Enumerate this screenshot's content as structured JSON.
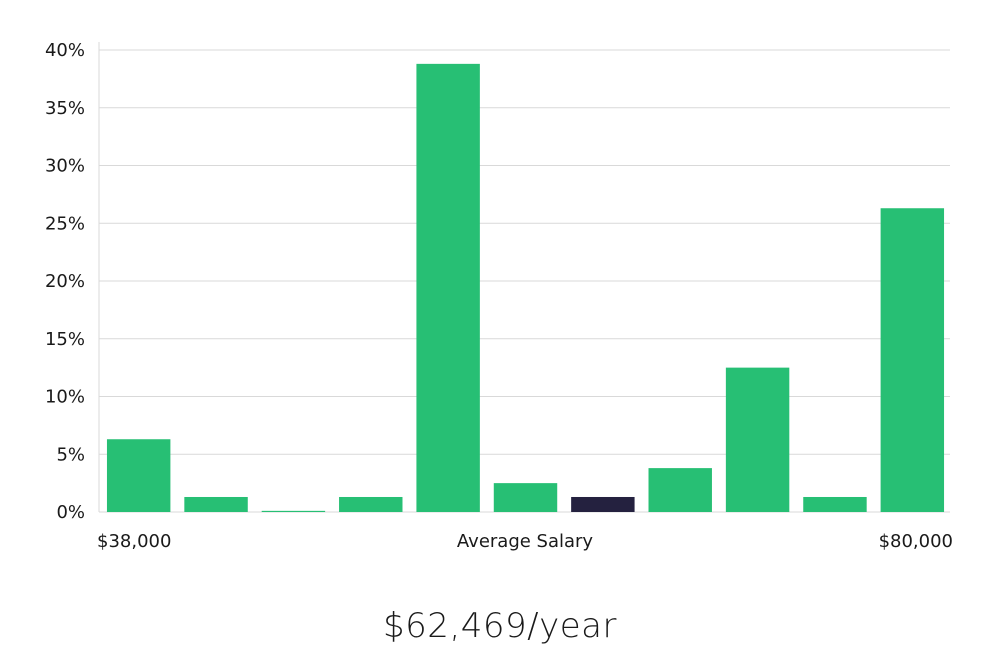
{
  "chart_data": {
    "type": "bar",
    "title": "",
    "xlabel": "Average Salary",
    "ylabel": "",
    "x_min_label": "$38,000",
    "x_max_label": "$80,000",
    "ylim": [
      0,
      40
    ],
    "yticks": [
      0,
      5,
      10,
      15,
      20,
      25,
      30,
      35,
      40
    ],
    "ytick_labels": [
      "0%",
      "5%",
      "10%",
      "15%",
      "20%",
      "25%",
      "30%",
      "35%",
      "40%"
    ],
    "values": [
      6.3,
      1.3,
      0.1,
      1.3,
      38.8,
      2.5,
      1.3,
      3.8,
      12.5,
      1.3,
      26.3
    ],
    "highlight_index": 6,
    "grid": true,
    "colors": {
      "bar": "#27bf74",
      "highlight": "#24213f",
      "grid": "#d9d9d9"
    }
  },
  "summary": {
    "salary_text": "$62,469/year"
  }
}
